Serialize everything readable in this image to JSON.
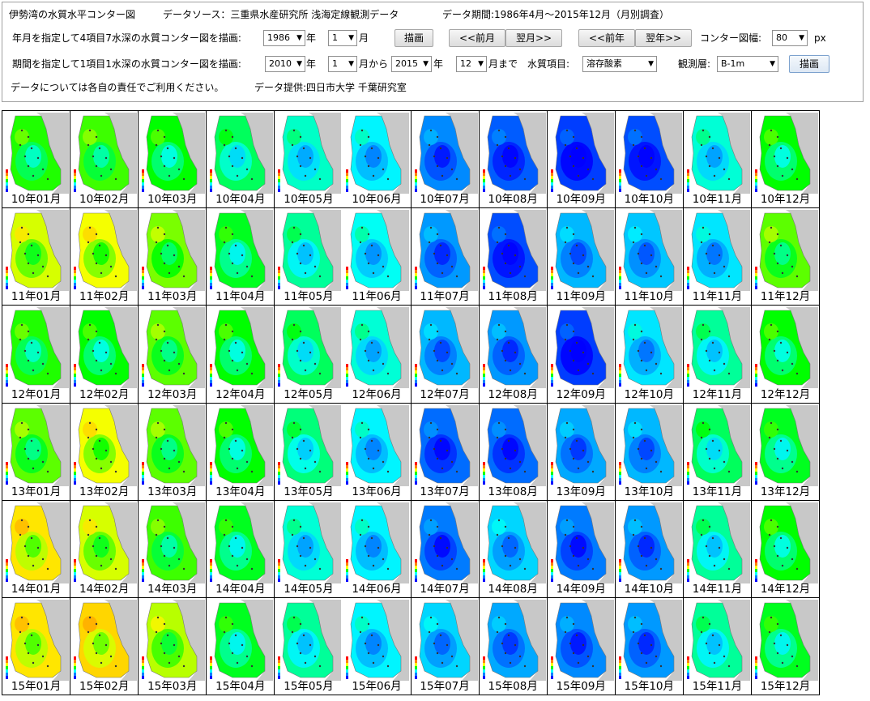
{
  "header": {
    "title": "伊勢湾の水質水平コンター図",
    "source": "データソース：三重県水産研究所  浅海定線観測データ",
    "period": "データ期間:1986年4月～2015年12月（月別調査）"
  },
  "row1": {
    "label": "年月を指定して4項目7水深の水質コンター図を描画:",
    "year": "1986",
    "year_suffix": "年",
    "month": "1",
    "month_suffix": "月",
    "draw": "描画",
    "prev_month": "<<前月",
    "next_month": "翌月>>",
    "prev_year": "<<前年",
    "next_year": "翌年>>",
    "width_label": "コンター図幅:",
    "width_value": "80",
    "width_unit": "px"
  },
  "row2": {
    "label": "期間を指定して1項目1水深の水質コンター図を描画:",
    "from_year": "2010",
    "from_year_suffix": "年",
    "from_month": "1",
    "from_month_suffix": "月から",
    "to_year": "2015",
    "to_year_suffix": "年",
    "to_month": "12",
    "to_month_suffix": "月まで",
    "item_label": "水質項目:",
    "item": "溶存酸素",
    "layer_label": "観測層:",
    "layer": "B-1m",
    "draw": "描画"
  },
  "row3": {
    "notice": "データについては各自の責任でご利用ください。",
    "provider": "データ提供:四日市大学  千葉研究室"
  },
  "colors": {
    "land": "#c8c8c8",
    "scale": [
      "#ff0000",
      "#ff8000",
      "#ffff00",
      "#00ff00",
      "#00ffff",
      "#0080ff",
      "#0000ff"
    ]
  },
  "maps": [
    {
      "year": "10",
      "captions": [
        "10年01月",
        "10年02月",
        "10年03月",
        "10年04月",
        "10年05月",
        "10年06月",
        "10年07月",
        "10年08月",
        "10年09月",
        "10年10月",
        "10年11月",
        "10年12月"
      ],
      "levels": [
        0.48,
        0.46,
        0.5,
        0.56,
        0.63,
        0.68,
        0.82,
        0.88,
        0.92,
        0.9,
        0.64,
        0.5
      ]
    },
    {
      "year": "11",
      "captions": [
        "11年01月",
        "11年02月",
        "11年03月",
        "11年04月",
        "11年05月",
        "11年06月",
        "11年07月",
        "11年08月",
        "11年09月",
        "11年10月",
        "11年11月",
        "11年12月"
      ],
      "levels": [
        0.36,
        0.34,
        0.42,
        0.52,
        0.6,
        0.66,
        0.8,
        0.9,
        0.76,
        0.74,
        0.7,
        0.44
      ]
    },
    {
      "year": "12",
      "captions": [
        "12年01月",
        "12年02月",
        "12年03月",
        "12年04月",
        "12年05月",
        "12年06月",
        "12年07月",
        "12年08月",
        "12年09月",
        "12年10月",
        "12年11月",
        "12年12月"
      ],
      "levels": [
        0.48,
        0.5,
        0.44,
        0.5,
        0.56,
        0.64,
        0.76,
        0.8,
        0.92,
        0.7,
        0.6,
        0.5
      ]
    },
    {
      "year": "13",
      "captions": [
        "13年01月",
        "13年02月",
        "13年03月",
        "13年04月",
        "13年05月",
        "13年06月",
        "13年07月",
        "13年08月",
        "13年09月",
        "13年10月",
        "13年11月",
        "13年12月"
      ],
      "levels": [
        0.44,
        0.34,
        0.44,
        0.5,
        0.58,
        0.68,
        0.86,
        0.86,
        0.78,
        0.76,
        0.56,
        0.52
      ]
    },
    {
      "year": "14",
      "captions": [
        "14年01月",
        "14年02月",
        "14年03月",
        "14年04月",
        "14年05月",
        "14年06月",
        "14年07月",
        "14年08月",
        "14年09月",
        "14年10月",
        "14年11月",
        "14年12月"
      ],
      "levels": [
        0.3,
        0.36,
        0.46,
        0.52,
        0.64,
        0.68,
        0.84,
        0.72,
        0.84,
        0.8,
        0.6,
        0.5
      ]
    },
    {
      "year": "15",
      "captions": [
        "15年01月",
        "15年02月",
        "15年03月",
        "15年04月",
        "15年05月",
        "15年06月",
        "15年07月",
        "15年08月",
        "15年09月",
        "15年10月",
        "15年11月",
        "15年12月"
      ],
      "levels": [
        0.3,
        0.28,
        0.38,
        0.52,
        0.6,
        0.68,
        0.72,
        0.78,
        0.82,
        0.8,
        0.6,
        0.52
      ]
    }
  ]
}
